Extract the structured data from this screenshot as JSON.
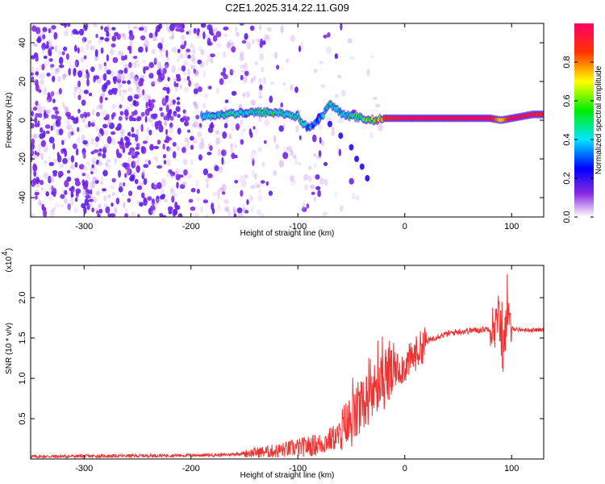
{
  "title": "C2E1.2025.314.22.11.G09",
  "chart_data": [
    {
      "type": "heatmap",
      "name": "spectrogram",
      "xlabel": "Height of straight line (km)",
      "ylabel": "Frequency (Hz)",
      "xlim": [
        -350,
        130
      ],
      "ylim": [
        -50,
        50
      ],
      "xticks": [
        -300,
        -200,
        -100,
        0,
        100
      ],
      "yticks": [
        -40,
        -20,
        0,
        20,
        40
      ],
      "colorbar": {
        "label": "Normalized spectral amplitude",
        "range": [
          0,
          1
        ],
        "ticks": [
          "0.0",
          "0.2",
          "0.4",
          "0.6",
          "0.8"
        ],
        "tick_values": [
          0,
          0.2,
          0.4,
          0.6,
          0.8
        ]
      },
      "ridge": {
        "x": [
          -190,
          -150,
          -120,
          -100,
          -95,
          -90,
          -80,
          -70,
          -60,
          -50,
          -40,
          -30,
          -20,
          -10,
          0,
          20,
          50,
          80,
          90,
          100,
          110,
          120,
          130
        ],
        "freq_hz": [
          2,
          4,
          4,
          2,
          -2,
          -4,
          0,
          8,
          4,
          2,
          1,
          0,
          1,
          1,
          1,
          1,
          1,
          1,
          0,
          1,
          2,
          3,
          3
        ],
        "amplitude": [
          0.45,
          0.5,
          0.55,
          0.5,
          0.45,
          0.4,
          0.35,
          0.5,
          0.45,
          0.55,
          0.55,
          0.7,
          0.85,
          0.9,
          0.95,
          0.95,
          0.95,
          0.95,
          0.7,
          0.95,
          0.95,
          0.9,
          0.9
        ]
      },
      "branch": {
        "x": [
          -80,
          -70,
          -60,
          -50,
          -45,
          -40,
          -35
        ],
        "freq_hz": [
          2,
          -2,
          -8,
          -14,
          -20,
          -24,
          -30
        ]
      }
    },
    {
      "type": "line",
      "name": "snr",
      "xlabel": "Height of straight line (km)",
      "ylabel": "SNR (10 * v/v)",
      "y_scale_label": "(x10",
      "y_scale_exponent": "4",
      "xlim": [
        -350,
        130
      ],
      "ylim": [
        0,
        2.4
      ],
      "xticks": [
        -300,
        -200,
        -100,
        0,
        100
      ],
      "yticks": [
        0.5,
        1.0,
        1.5,
        2.0
      ],
      "ytick_labels": [
        "0.5",
        "1.0",
        "1.5",
        "2.0"
      ],
      "color": "#ee3333",
      "series": [
        {
          "name": "SNR",
          "x": [
            -350,
            -250,
            -170,
            -120,
            -80,
            -60,
            -45,
            -35,
            -25,
            -15,
            -10,
            0,
            10,
            20,
            30,
            50,
            70,
            80,
            85,
            88,
            92,
            95,
            100,
            110,
            130
          ],
          "y": [
            0.03,
            0.04,
            0.05,
            0.1,
            0.18,
            0.3,
            0.55,
            0.75,
            0.9,
            1.0,
            1.1,
            1.15,
            1.3,
            1.45,
            1.52,
            1.58,
            1.6,
            1.62,
            1.65,
            1.8,
            1.3,
            1.7,
            1.62,
            1.6,
            1.6
          ]
        }
      ]
    }
  ]
}
